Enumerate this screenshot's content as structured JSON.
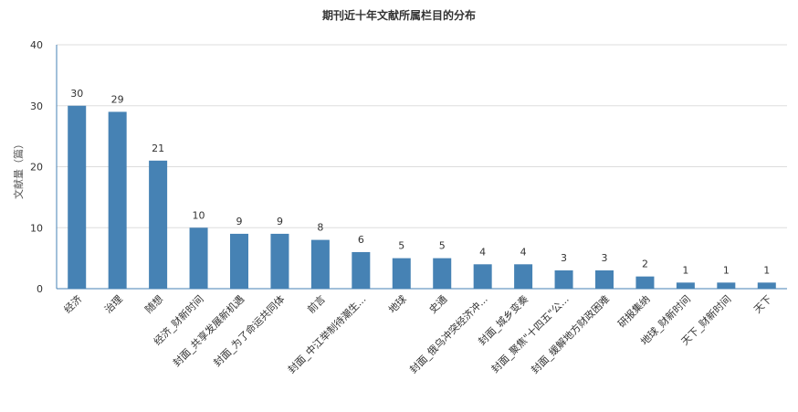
{
  "chart_data": {
    "type": "bar",
    "title": "期刊近十年文献所属栏目的分布",
    "xlabel": "",
    "ylabel": "文献量（篇）",
    "ylim": [
      0,
      40
    ],
    "yticks": [
      0,
      10,
      20,
      30,
      40
    ],
    "grid": true,
    "bar_color": "#4682b4",
    "categories": [
      "经济",
      "治理",
      "随想",
      "经济_财新时间",
      "封面_共享发展新机遇",
      "封面_为了命运共同体",
      "前言",
      "封面_中江举制待潮生...",
      "地球",
      "史通",
      "封面_俄乌冲突经济冲...",
      "封面_城乡变奏",
      "封面_聚焦\"十四五\"公...",
      "封面_缓解地方财政困难",
      "研报集纳",
      "地球_财新时间",
      "天下_财新时间",
      "天下"
    ],
    "values": [
      30,
      29,
      21,
      10,
      9,
      9,
      8,
      6,
      5,
      5,
      4,
      4,
      3,
      3,
      2,
      1,
      1,
      1
    ]
  }
}
